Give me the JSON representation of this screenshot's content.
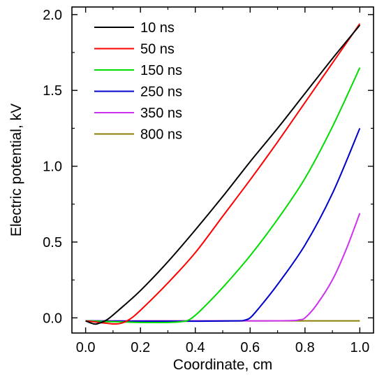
{
  "chart_data": {
    "type": "line",
    "title": "",
    "xlabel": "Coordinate, cm",
    "ylabel": "Electric potential, kV",
    "xlim": [
      -0.05,
      1.05
    ],
    "ylim": [
      -0.1,
      2.05
    ],
    "xticks": [
      0.0,
      0.2,
      0.4,
      0.6,
      0.8,
      1.0
    ],
    "xtick_labels": [
      "0.0",
      "0.2",
      "0.4",
      "0.6",
      "0.8",
      "1.0"
    ],
    "yticks": [
      0.0,
      0.5,
      1.0,
      1.5,
      2.0
    ],
    "ytick_labels": [
      "0.0",
      "0.5",
      "1.0",
      "1.5",
      "2.0"
    ],
    "grid": false,
    "legend_position": "top-left",
    "series": [
      {
        "name": "10 ns",
        "color": "#000000",
        "x": [
          0.0,
          0.03,
          0.05,
          0.08,
          0.12,
          0.2,
          0.3,
          0.4,
          0.5,
          0.6,
          0.7,
          0.8,
          0.9,
          1.0
        ],
        "y": [
          -0.02,
          -0.04,
          -0.035,
          -0.01,
          0.05,
          0.18,
          0.37,
          0.58,
          0.8,
          1.03,
          1.25,
          1.48,
          1.71,
          1.93
        ]
      },
      {
        "name": "50 ns",
        "color": "#ff0000",
        "x": [
          0.0,
          0.05,
          0.1,
          0.13,
          0.16,
          0.2,
          0.3,
          0.4,
          0.5,
          0.6,
          0.7,
          0.8,
          0.9,
          1.0
        ],
        "y": [
          -0.02,
          -0.03,
          -0.04,
          -0.035,
          -0.01,
          0.05,
          0.23,
          0.43,
          0.67,
          0.91,
          1.16,
          1.42,
          1.68,
          1.94
        ]
      },
      {
        "name": "150 ns",
        "color": "#00dd00",
        "x": [
          0.0,
          0.1,
          0.2,
          0.3,
          0.35,
          0.38,
          0.42,
          0.5,
          0.6,
          0.7,
          0.8,
          0.9,
          1.0
        ],
        "y": [
          -0.02,
          -0.025,
          -0.03,
          -0.03,
          -0.025,
          -0.01,
          0.05,
          0.2,
          0.41,
          0.65,
          0.92,
          1.26,
          1.65
        ]
      },
      {
        "name": "250 ns",
        "color": "#0000cc",
        "x": [
          0.0,
          0.2,
          0.4,
          0.55,
          0.58,
          0.6,
          0.63,
          0.7,
          0.8,
          0.9,
          1.0
        ],
        "y": [
          -0.02,
          -0.022,
          -0.022,
          -0.02,
          -0.015,
          0.0,
          0.06,
          0.22,
          0.48,
          0.82,
          1.25
        ]
      },
      {
        "name": "350 ns",
        "color": "#cc33ee",
        "x": [
          0.0,
          0.2,
          0.4,
          0.6,
          0.75,
          0.78,
          0.8,
          0.84,
          0.9,
          0.95,
          1.0
        ],
        "y": [
          -0.02,
          -0.02,
          -0.02,
          -0.02,
          -0.018,
          -0.012,
          0.0,
          0.08,
          0.25,
          0.45,
          0.69
        ]
      },
      {
        "name": "800 ns",
        "color": "#8b7d00",
        "x": [
          0.0,
          0.05,
          0.1,
          0.2,
          0.4,
          0.6,
          0.8,
          1.0
        ],
        "y": [
          -0.02,
          -0.025,
          -0.025,
          -0.02,
          -0.02,
          -0.02,
          -0.02,
          -0.02
        ]
      }
    ]
  }
}
